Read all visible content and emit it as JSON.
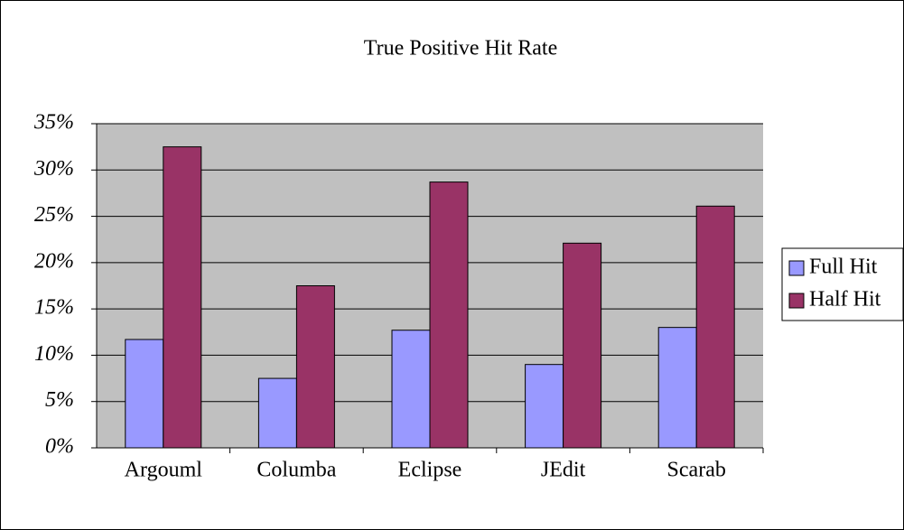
{
  "chart_data": {
    "type": "bar",
    "title": "True Positive Hit Rate",
    "categories": [
      "Argouml",
      "Columba",
      "Eclipse",
      "JEdit",
      "Scarab"
    ],
    "series": [
      {
        "name": "Full Hit",
        "color": "#9999ff",
        "values": [
          11.7,
          7.5,
          12.7,
          9.0,
          13.0
        ]
      },
      {
        "name": "Half Hit",
        "color": "#993366",
        "values": [
          32.5,
          17.5,
          28.7,
          22.1,
          26.1
        ]
      }
    ],
    "ylim": [
      0,
      35
    ],
    "yticks": [
      {
        "value": 0,
        "label": "0%"
      },
      {
        "value": 5,
        "label": "5%"
      },
      {
        "value": 10,
        "label": "10%"
      },
      {
        "value": 15,
        "label": "15%"
      },
      {
        "value": 20,
        "label": "20%"
      },
      {
        "value": 25,
        "label": "25%"
      },
      {
        "value": 30,
        "label": "30%"
      },
      {
        "value": 35,
        "label": "35%"
      }
    ],
    "grid": true,
    "legend": "right"
  }
}
